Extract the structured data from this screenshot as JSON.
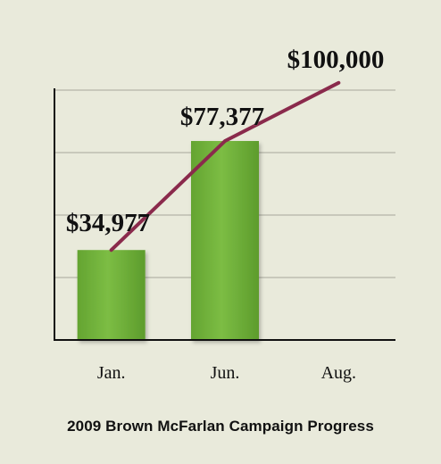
{
  "chart_data": {
    "type": "bar",
    "categories": [
      "Jan.",
      "Jun.",
      "Aug."
    ],
    "values": [
      34977,
      77377,
      null
    ],
    "series": [
      {
        "values": [
          34977,
          77377,
          null
        ]
      },
      {
        "values": [
          34977,
          77377,
          100000
        ]
      }
    ],
    "data_labels": [
      "$34,977",
      "$77,377",
      "$100,000"
    ],
    "title": "2009 Brown McFarlan Campaign Progress",
    "xlabel": "",
    "ylabel": "",
    "ylim": [
      0,
      110000
    ],
    "grid": true,
    "legend": "none",
    "colors": {
      "bar": "#72b43a",
      "line": "#8a2a4c",
      "grid": "#b4b4a8",
      "axis": "#111111",
      "background": "#e9eadb"
    }
  }
}
